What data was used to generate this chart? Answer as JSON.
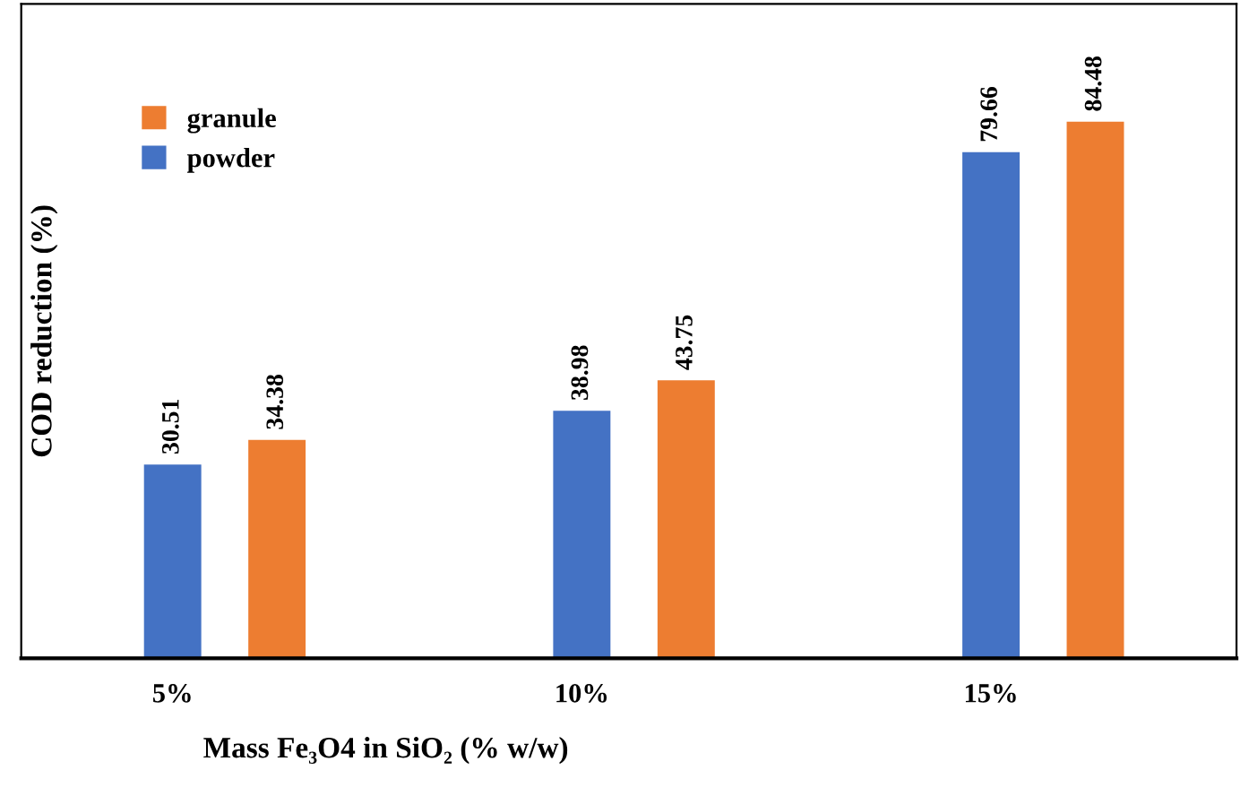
{
  "chart_data": {
    "type": "bar",
    "xlabel": "Mass Fe₃O4 in SiO₂ (% w/w)",
    "ylabel": "COD reduction (%)",
    "categories": [
      "5%",
      "10%",
      "15%"
    ],
    "series": [
      {
        "name": "powder",
        "color": "#4472c4",
        "values": [
          30.51,
          38.98,
          79.66
        ]
      },
      {
        "name": "granule",
        "color": "#ed7d31",
        "values": [
          34.38,
          43.75,
          84.48
        ]
      }
    ],
    "ylim": [
      0,
      103
    ],
    "data_labels": true,
    "legend": "top left",
    "tick_labels": "x",
    "grid": false
  }
}
